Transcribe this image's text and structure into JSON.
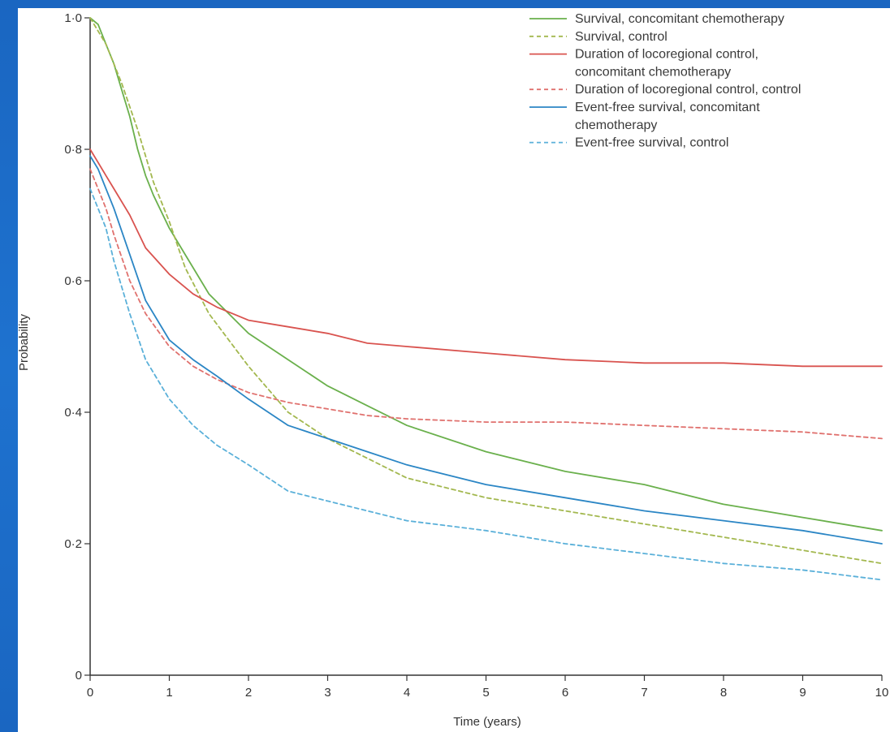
{
  "chart_data": {
    "type": "line",
    "title": "",
    "xlabel": "Time (years)",
    "ylabel": "Probability",
    "xlim": [
      0,
      10
    ],
    "ylim": [
      0,
      1
    ],
    "xticks": [
      0,
      1,
      2,
      3,
      4,
      5,
      6,
      7,
      8,
      9,
      10
    ],
    "yticks": [
      0,
      0.2,
      0.4,
      0.6,
      0.8,
      1.0
    ],
    "xtick_labels": [
      "0",
      "1",
      "2",
      "3",
      "4",
      "5",
      "6",
      "7",
      "8",
      "9",
      "10"
    ],
    "ytick_labels": [
      "0",
      "0·2",
      "0·4",
      "0·6",
      "0·8",
      "1·0"
    ],
    "grid": false,
    "legend_position": "top-right",
    "series": [
      {
        "name": "Survival, concomitant chemotherapy",
        "color": "#6ab04c",
        "dash": "solid",
        "x": [
          0,
          0.1,
          0.2,
          0.3,
          0.4,
          0.5,
          0.6,
          0.7,
          0.8,
          1.0,
          1.2,
          1.5,
          2.0,
          2.5,
          3.0,
          3.5,
          4.0,
          5.0,
          6.0,
          7.0,
          8.0,
          9.0,
          10.0
        ],
        "y": [
          1.0,
          0.99,
          0.96,
          0.93,
          0.89,
          0.85,
          0.8,
          0.76,
          0.73,
          0.68,
          0.64,
          0.58,
          0.52,
          0.48,
          0.44,
          0.41,
          0.38,
          0.34,
          0.31,
          0.29,
          0.26,
          0.24,
          0.22
        ]
      },
      {
        "name": "Survival, control",
        "color": "#a3b84f",
        "dash": "dashed",
        "x": [
          0,
          0.2,
          0.4,
          0.6,
          0.8,
          1.0,
          1.2,
          1.5,
          2.0,
          2.5,
          3.0,
          3.5,
          4.0,
          5.0,
          6.0,
          7.0,
          8.0,
          9.0,
          10.0
        ],
        "y": [
          1.0,
          0.96,
          0.9,
          0.83,
          0.75,
          0.69,
          0.62,
          0.55,
          0.47,
          0.4,
          0.36,
          0.33,
          0.3,
          0.27,
          0.25,
          0.23,
          0.21,
          0.19,
          0.17
        ]
      },
      {
        "name": "Duration of locoregional control, concomitant chemotherapy",
        "color": "#d9534f",
        "dash": "solid",
        "x": [
          0,
          0.1,
          0.2,
          0.3,
          0.5,
          0.7,
          1.0,
          1.3,
          1.6,
          2.0,
          2.5,
          3.0,
          3.5,
          4.0,
          5.0,
          6.0,
          7.0,
          8.0,
          9.0,
          10.0
        ],
        "y": [
          0.8,
          0.78,
          0.76,
          0.74,
          0.7,
          0.65,
          0.61,
          0.58,
          0.56,
          0.54,
          0.53,
          0.52,
          0.505,
          0.5,
          0.49,
          0.48,
          0.475,
          0.475,
          0.47,
          0.47
        ]
      },
      {
        "name": "Duration of locoregional control, control",
        "color": "#e0716e",
        "dash": "dashed",
        "x": [
          0,
          0.1,
          0.2,
          0.3,
          0.5,
          0.7,
          1.0,
          1.3,
          1.6,
          2.0,
          2.5,
          3.0,
          3.5,
          4.0,
          5.0,
          6.0,
          7.0,
          8.0,
          9.0,
          10.0
        ],
        "y": [
          0.77,
          0.74,
          0.71,
          0.67,
          0.6,
          0.55,
          0.5,
          0.47,
          0.45,
          0.43,
          0.415,
          0.405,
          0.395,
          0.39,
          0.385,
          0.385,
          0.38,
          0.375,
          0.37,
          0.36
        ]
      },
      {
        "name": "Event-free survival, concomitant chemotherapy",
        "color": "#2b86c5",
        "dash": "solid",
        "x": [
          0,
          0.1,
          0.2,
          0.3,
          0.5,
          0.7,
          1.0,
          1.3,
          1.6,
          2.0,
          2.5,
          3.0,
          3.5,
          4.0,
          5.0,
          6.0,
          7.0,
          8.0,
          9.0,
          10.0
        ],
        "y": [
          0.79,
          0.77,
          0.74,
          0.71,
          0.64,
          0.57,
          0.51,
          0.48,
          0.455,
          0.42,
          0.38,
          0.36,
          0.34,
          0.32,
          0.29,
          0.27,
          0.25,
          0.235,
          0.22,
          0.2
        ]
      },
      {
        "name": "Event-free survival, control",
        "color": "#5ab0d9",
        "dash": "dashed",
        "x": [
          0,
          0.1,
          0.2,
          0.3,
          0.5,
          0.7,
          1.0,
          1.3,
          1.6,
          2.0,
          2.5,
          3.0,
          3.5,
          4.0,
          5.0,
          6.0,
          7.0,
          8.0,
          9.0,
          10.0
        ],
        "y": [
          0.74,
          0.71,
          0.68,
          0.63,
          0.55,
          0.48,
          0.42,
          0.38,
          0.35,
          0.32,
          0.28,
          0.265,
          0.25,
          0.235,
          0.22,
          0.2,
          0.185,
          0.17,
          0.16,
          0.145
        ]
      }
    ],
    "legend_lines": [
      [
        "Survival, concomitant chemotherapy"
      ],
      [
        "Survival, control"
      ],
      [
        "Duration of locoregional control,",
        "concomitant chemotherapy"
      ],
      [
        "Duration of locoregional control, control"
      ],
      [
        "Event-free survival, concomitant",
        "chemotherapy"
      ],
      [
        "Event-free survival, control"
      ]
    ]
  }
}
